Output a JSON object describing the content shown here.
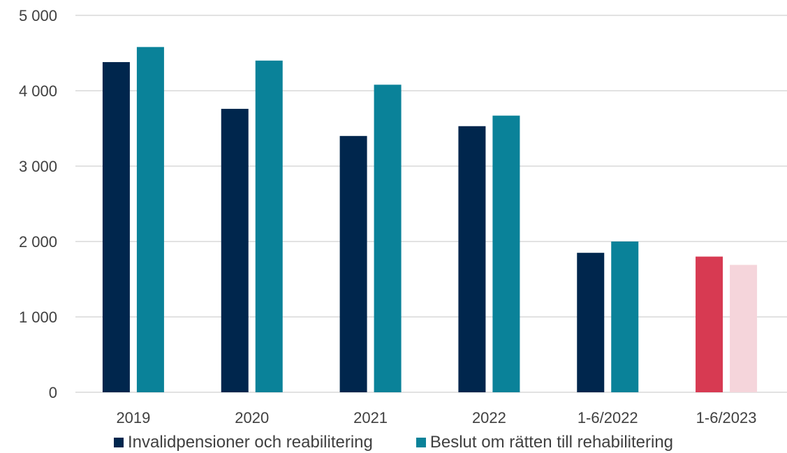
{
  "chart_data": {
    "type": "bar",
    "categories": [
      "2019",
      "2020",
      "2021",
      "2022",
      "1-6/2022",
      "1-6/2023"
    ],
    "series": [
      {
        "name": "Invalidpensioner och reabilitering",
        "color": "#00264d",
        "values": [
          4380,
          3760,
          3400,
          3530,
          1850,
          1800
        ],
        "point_colors": [
          "#00264d",
          "#00264d",
          "#00264d",
          "#00264d",
          "#00264d",
          "#d73a52"
        ]
      },
      {
        "name": "Beslut om rätten till rehabilitering",
        "color": "#0a8299",
        "values": [
          4580,
          4400,
          4080,
          3670,
          2000,
          1690
        ],
        "point_colors": [
          "#0a8299",
          "#0a8299",
          "#0a8299",
          "#0a8299",
          "#0a8299",
          "#f5d5db"
        ]
      }
    ],
    "yticks": [
      "0",
      "1 000",
      "2 000",
      "3 000",
      "4 000",
      "5 000"
    ],
    "ylim": [
      0,
      5000
    ],
    "grid": true,
    "legend_position": "bottom",
    "gridline_color": "#d9d9d9"
  }
}
